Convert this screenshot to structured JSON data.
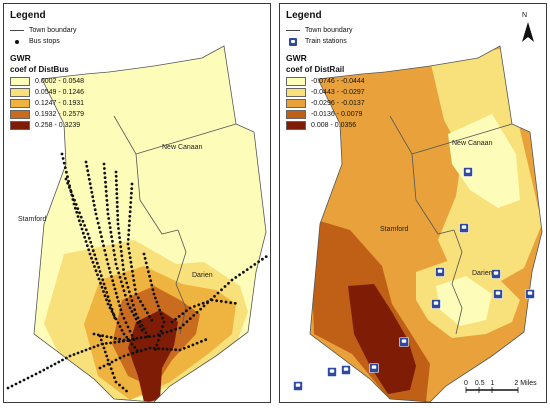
{
  "left_panel": {
    "legend_title": "Legend",
    "boundary_label": "Town boundary",
    "stops_label": "Bus stops",
    "model_label": "GWR",
    "variable_label": "coef of DistBus",
    "classes": [
      {
        "label": "0.0002 - 0.0548",
        "color": "#fdfcb8"
      },
      {
        "label": "0.0549 - 0.1246",
        "color": "#f8e07a"
      },
      {
        "label": "0.1247 - 0.1931",
        "color": "#efb33f"
      },
      {
        "label": "0.1932 - 0.2579",
        "color": "#c96c1f"
      },
      {
        "label": "0.258 - 0.3239",
        "color": "#7e1c06"
      }
    ],
    "towns": {
      "stamford": "Stamford",
      "new_canaan": "New Canaan",
      "darien": "Darien"
    }
  },
  "right_panel": {
    "legend_title": "Legend",
    "boundary_label": "Town boundary",
    "stations_label": "Train stations",
    "model_label": "GWR",
    "variable_label": "coef of DistRail",
    "classes": [
      {
        "label": "-0.0746 - -0.0444",
        "color": "#fdfcb8"
      },
      {
        "label": "-0.0443 - -0.0297",
        "color": "#f8e07a"
      },
      {
        "label": "-0.0296 - -0.0137",
        "color": "#e9a23b"
      },
      {
        "label": "-0.0136 - 0.0079",
        "color": "#c06017"
      },
      {
        "label": "0.008 - 0.0356",
        "color": "#7e1c06"
      }
    ],
    "towns": {
      "stamford": "Stamford",
      "new_canaan": "New Canaan",
      "darien": "Darien"
    },
    "north_label": "N",
    "scale": {
      "t0": "0",
      "t1": "0.5",
      "t2": "1",
      "t3": "2",
      "unit": "Miles"
    }
  },
  "colors": {
    "boundary": "#555555",
    "stop": "#111111",
    "station": "#2d4aa0"
  }
}
